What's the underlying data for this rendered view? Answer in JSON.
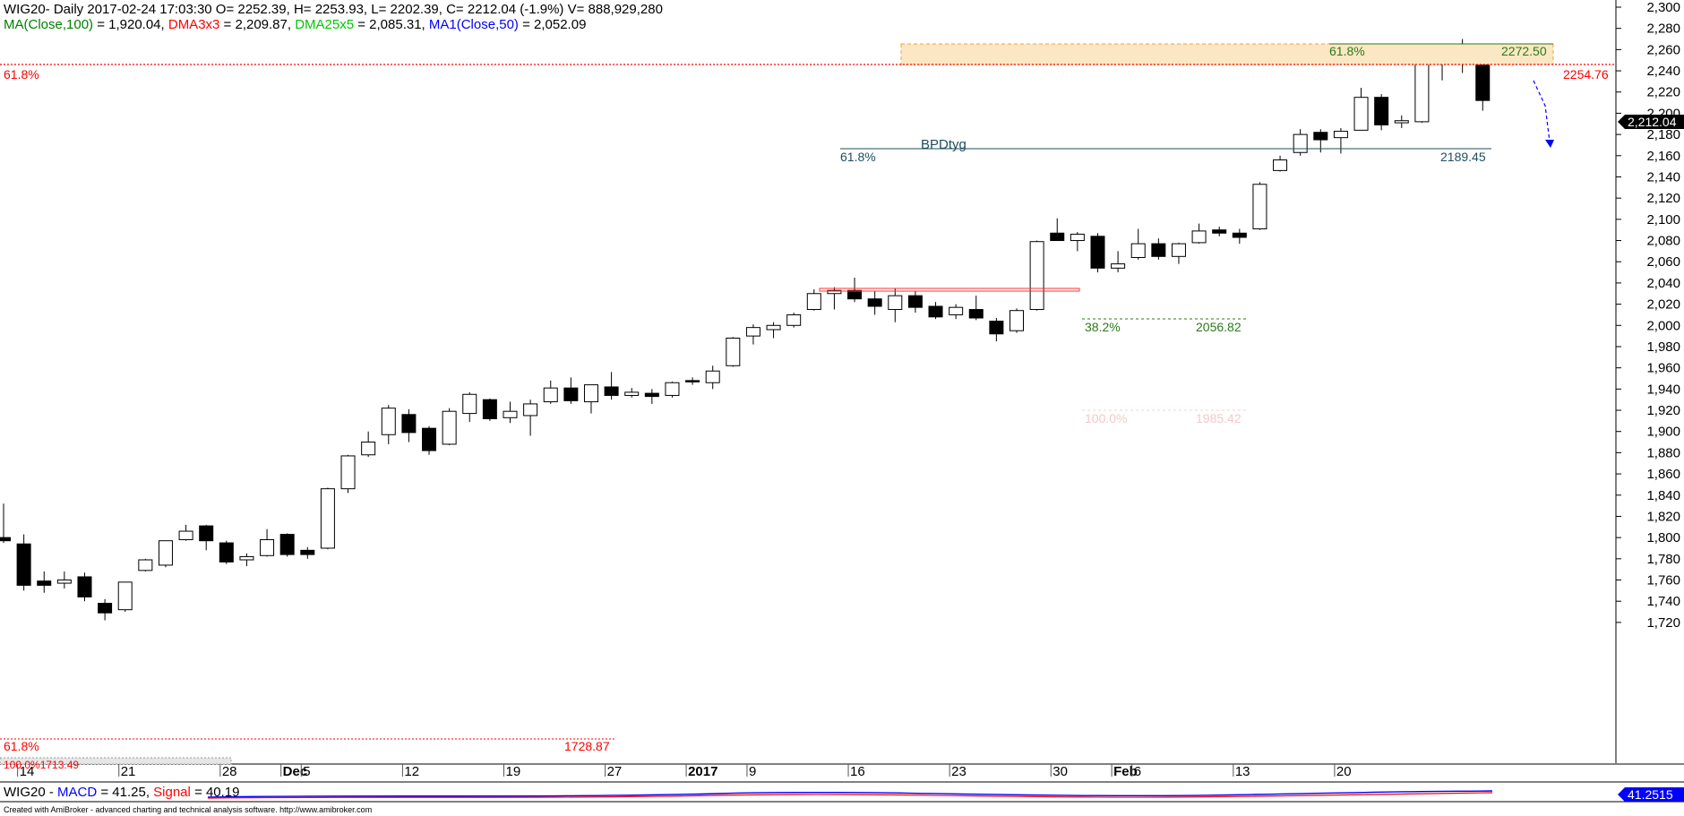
{
  "header": {
    "line1": "WIG20- Daily 2017-02-24 17:03:30 O= 2252.39, H= 2253.93, L= 2202.39, C= 2212.04 (-1.9%) V= 888,929,280",
    "ma_parts": [
      {
        "text": "MA(Close,100) ",
        "color": "#008000"
      },
      {
        "text": "= 1,920.04, ",
        "color": "#000000"
      },
      {
        "text": "DMA3x3 ",
        "color": "#ff0000"
      },
      {
        "text": "= 2,209.87, ",
        "color": "#000000"
      },
      {
        "text": "DMA25x5 ",
        "color": "#00c800"
      },
      {
        "text": "= 2,085.31, ",
        "color": "#000000"
      },
      {
        "text": "MA1(Close,50) ",
        "color": "#0000ff"
      },
      {
        "text": "= 2,052.09",
        "color": "#000000"
      }
    ]
  },
  "annotations": {
    "fib_top_left": "61.8%",
    "fib_top_right": "2254.76",
    "fib_bottom_left": "61.8%",
    "fib_bottom_right": "1728.87",
    "bpd_name": "BPDtyg",
    "bpd_left": "61.8%",
    "bpd_right": "2189.45",
    "zone_left": "61.8%",
    "zone_right": "2272.50",
    "ret_382": "38.2%",
    "ret_382_val": "2056.82",
    "ret_100": "100.0%",
    "ret_100_val": "1985.42",
    "price_tag": "2,212.04",
    "cut_label": "100.0%1713.49"
  },
  "macd": {
    "text_parts": [
      {
        "text": "WIG20 - ",
        "color": "#000000"
      },
      {
        "text": "MACD",
        "color": "#0000ff"
      },
      {
        "text": " = 41.25, ",
        "color": "#000000"
      },
      {
        "text": "Signal",
        "color": "#ff0000"
      },
      {
        "text": " = 40.19",
        "color": "#000000"
      }
    ],
    "value_tag": "41.2515"
  },
  "footer": "Created with AmiBroker - advanced charting and technical analysis software. http://www.amibroker.com",
  "colors": {
    "bull_body": "#ffffff",
    "bear_body": "#000000",
    "fib_red": "#ff0000",
    "fib_green": "#2a7a1a",
    "bpd_line": "#1f4e5f",
    "zone_fill": "#fbe7c3",
    "arrow_blue": "#0000ff"
  },
  "chart_data": {
    "type": "candlestick",
    "title": "WIG20- Daily",
    "ylim": [
      1705,
      2310
    ],
    "y_ticks": [
      1720,
      1740,
      1760,
      1780,
      1800,
      1820,
      1840,
      1860,
      1880,
      1900,
      1920,
      1940,
      1960,
      1980,
      2000,
      2020,
      2040,
      2060,
      2080,
      2100,
      2120,
      2140,
      2160,
      2180,
      2200,
      2220,
      2240,
      2260,
      2280,
      2300
    ],
    "x_labels": [
      {
        "i": 1,
        "text": "14",
        "bold": false
      },
      {
        "i": 6,
        "text": "21",
        "bold": false
      },
      {
        "i": 11,
        "text": "28",
        "bold": false
      },
      {
        "i": 14,
        "text": "Dec",
        "bold": true
      },
      {
        "i": 15,
        "text": "5",
        "bold": false
      },
      {
        "i": 20,
        "text": "12",
        "bold": false
      },
      {
        "i": 25,
        "text": "19",
        "bold": false
      },
      {
        "i": 30,
        "text": "27",
        "bold": false
      },
      {
        "i": 34,
        "text": "2017",
        "bold": true
      },
      {
        "i": 37,
        "text": "9",
        "bold": false
      },
      {
        "i": 42,
        "text": "16",
        "bold": false
      },
      {
        "i": 47,
        "text": "23",
        "bold": false
      },
      {
        "i": 52,
        "text": "30",
        "bold": false
      },
      {
        "i": 55,
        "text": "Feb",
        "bold": true
      },
      {
        "i": 56,
        "text": "6",
        "bold": false
      },
      {
        "i": 61,
        "text": "13",
        "bold": false
      },
      {
        "i": 66,
        "text": "20",
        "bold": false
      }
    ],
    "candles": [
      {
        "o": 1800,
        "h": 1832,
        "l": 1795,
        "c": 1797
      },
      {
        "o": 1794,
        "h": 1803,
        "l": 1750,
        "c": 1755
      },
      {
        "o": 1759,
        "h": 1768,
        "l": 1748,
        "c": 1755
      },
      {
        "o": 1757,
        "h": 1768,
        "l": 1752,
        "c": 1760
      },
      {
        "o": 1763,
        "h": 1767,
        "l": 1740,
        "c": 1744
      },
      {
        "o": 1738,
        "h": 1742,
        "l": 1722,
        "c": 1729
      },
      {
        "o": 1732,
        "h": 1758,
        "l": 1730,
        "c": 1758
      },
      {
        "o": 1769,
        "h": 1780,
        "l": 1768,
        "c": 1779
      },
      {
        "o": 1774,
        "h": 1797,
        "l": 1772,
        "c": 1797
      },
      {
        "o": 1798,
        "h": 1812,
        "l": 1797,
        "c": 1806
      },
      {
        "o": 1811,
        "h": 1812,
        "l": 1788,
        "c": 1797
      },
      {
        "o": 1795,
        "h": 1797,
        "l": 1775,
        "c": 1777
      },
      {
        "o": 1779,
        "h": 1785,
        "l": 1773,
        "c": 1782
      },
      {
        "o": 1783,
        "h": 1808,
        "l": 1782,
        "c": 1798
      },
      {
        "o": 1803,
        "h": 1804,
        "l": 1782,
        "c": 1784
      },
      {
        "o": 1788,
        "h": 1791,
        "l": 1780,
        "c": 1784
      },
      {
        "o": 1790,
        "h": 1847,
        "l": 1789,
        "c": 1846
      },
      {
        "o": 1846,
        "h": 1878,
        "l": 1842,
        "c": 1877
      },
      {
        "o": 1878,
        "h": 1900,
        "l": 1876,
        "c": 1890
      },
      {
        "o": 1897,
        "h": 1925,
        "l": 1888,
        "c": 1922
      },
      {
        "o": 1916,
        "h": 1921,
        "l": 1890,
        "c": 1899
      },
      {
        "o": 1903,
        "h": 1905,
        "l": 1878,
        "c": 1882
      },
      {
        "o": 1888,
        "h": 1922,
        "l": 1887,
        "c": 1919
      },
      {
        "o": 1917,
        "h": 1937,
        "l": 1909,
        "c": 1935
      },
      {
        "o": 1930,
        "h": 1931,
        "l": 1910,
        "c": 1912
      },
      {
        "o": 1913,
        "h": 1928,
        "l": 1908,
        "c": 1919
      },
      {
        "o": 1915,
        "h": 1930,
        "l": 1896,
        "c": 1926
      },
      {
        "o": 1928,
        "h": 1948,
        "l": 1926,
        "c": 1941
      },
      {
        "o": 1941,
        "h": 1951,
        "l": 1926,
        "c": 1929
      },
      {
        "o": 1928,
        "h": 1944,
        "l": 1917,
        "c": 1944
      },
      {
        "o": 1942,
        "h": 1956,
        "l": 1930,
        "c": 1934
      },
      {
        "o": 1934,
        "h": 1941,
        "l": 1932,
        "c": 1937
      },
      {
        "o": 1936,
        "h": 1940,
        "l": 1926,
        "c": 1933
      },
      {
        "o": 1934,
        "h": 1947,
        "l": 1932,
        "c": 1946
      },
      {
        "o": 1948,
        "h": 1951,
        "l": 1944,
        "c": 1947
      },
      {
        "o": 1946,
        "h": 1962,
        "l": 1940,
        "c": 1957
      },
      {
        "o": 1962,
        "h": 1989,
        "l": 1961,
        "c": 1988
      },
      {
        "o": 1990,
        "h": 2001,
        "l": 1982,
        "c": 1998
      },
      {
        "o": 1996,
        "h": 2003,
        "l": 1988,
        "c": 2000
      },
      {
        "o": 2000,
        "h": 2012,
        "l": 1998,
        "c": 2010
      },
      {
        "o": 2015,
        "h": 2034,
        "l": 2014,
        "c": 2030
      },
      {
        "o": 2030,
        "h": 2036,
        "l": 2015,
        "c": 2033
      },
      {
        "o": 2033,
        "h": 2045,
        "l": 2022,
        "c": 2025
      },
      {
        "o": 2025,
        "h": 2032,
        "l": 2010,
        "c": 2018
      },
      {
        "o": 2015,
        "h": 2035,
        "l": 2003,
        "c": 2028
      },
      {
        "o": 2028,
        "h": 2032,
        "l": 2012,
        "c": 2017
      },
      {
        "o": 2018,
        "h": 2022,
        "l": 2006,
        "c": 2008
      },
      {
        "o": 2010,
        "h": 2020,
        "l": 2006,
        "c": 2017
      },
      {
        "o": 2015,
        "h": 2028,
        "l": 2005,
        "c": 2007
      },
      {
        "o": 2004,
        "h": 2007,
        "l": 1985,
        "c": 1992
      },
      {
        "o": 1995,
        "h": 2016,
        "l": 1993,
        "c": 2014
      },
      {
        "o": 2015,
        "h": 2080,
        "l": 2014,
        "c": 2079
      },
      {
        "o": 2087,
        "h": 2101,
        "l": 2080,
        "c": 2080
      },
      {
        "o": 2080,
        "h": 2088,
        "l": 2070,
        "c": 2086
      },
      {
        "o": 2084,
        "h": 2087,
        "l": 2050,
        "c": 2054
      },
      {
        "o": 2054,
        "h": 2070,
        "l": 2050,
        "c": 2058
      },
      {
        "o": 2064,
        "h": 2091,
        "l": 2062,
        "c": 2077
      },
      {
        "o": 2077,
        "h": 2082,
        "l": 2062,
        "c": 2065
      },
      {
        "o": 2065,
        "h": 2078,
        "l": 2058,
        "c": 2077
      },
      {
        "o": 2078,
        "h": 2096,
        "l": 2077,
        "c": 2089
      },
      {
        "o": 2090,
        "h": 2093,
        "l": 2084,
        "c": 2087
      },
      {
        "o": 2087,
        "h": 2091,
        "l": 2077,
        "c": 2083
      },
      {
        "o": 2091,
        "h": 2135,
        "l": 2090,
        "c": 2133
      },
      {
        "o": 2146,
        "h": 2160,
        "l": 2145,
        "c": 2156
      },
      {
        "o": 2163,
        "h": 2185,
        "l": 2160,
        "c": 2180
      },
      {
        "o": 2182,
        "h": 2185,
        "l": 2163,
        "c": 2175
      },
      {
        "o": 2177,
        "h": 2186,
        "l": 2162,
        "c": 2183
      },
      {
        "o": 2184,
        "h": 2224,
        "l": 2184,
        "c": 2215
      },
      {
        "o": 2215,
        "h": 2218,
        "l": 2184,
        "c": 2189
      },
      {
        "o": 2191,
        "h": 2198,
        "l": 2186,
        "c": 2193
      },
      {
        "o": 2192,
        "h": 2250,
        "l": 2191,
        "c": 2248
      },
      {
        "o": 2251,
        "h": 2257,
        "l": 2231,
        "c": 2250
      },
      {
        "o": 2248,
        "h": 2270,
        "l": 2238,
        "c": 2256
      },
      {
        "o": 2252.39,
        "h": 2253.93,
        "l": 2202.39,
        "c": 2212.04
      }
    ]
  }
}
